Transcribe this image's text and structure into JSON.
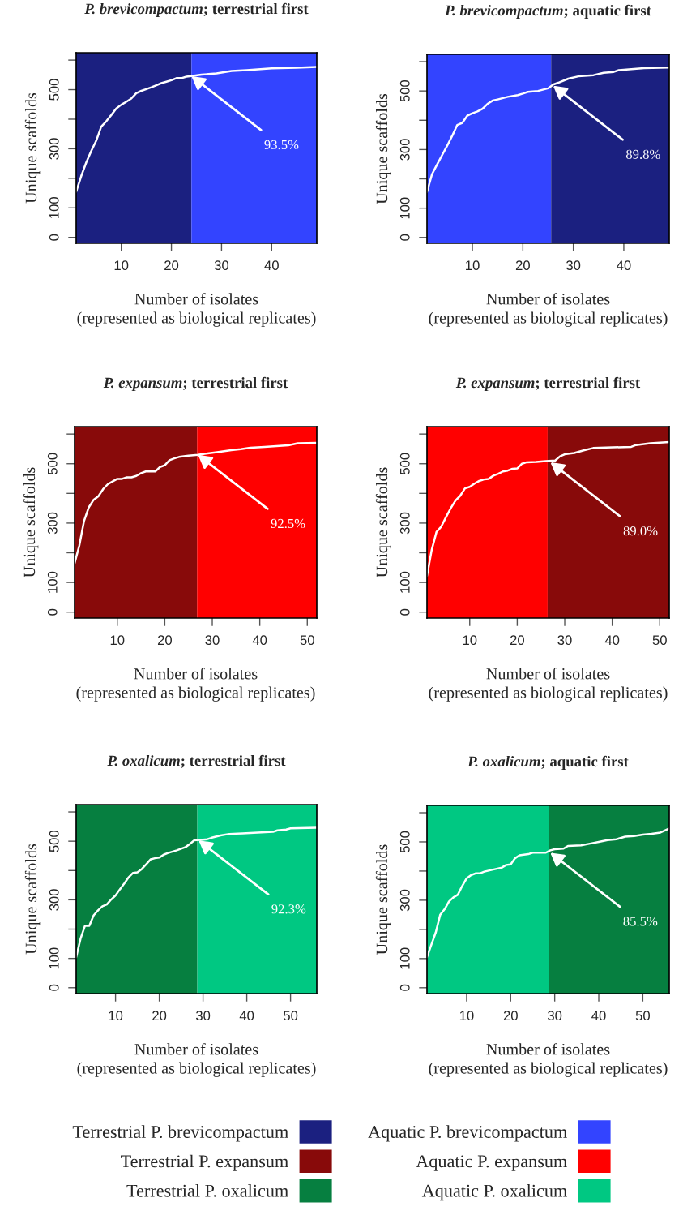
{
  "chart_data": [
    {
      "type": "line",
      "title": "P. brevicompactum; terrestrial first",
      "xlabel": "Number of isolates\n(represented as biological replicates)",
      "ylabel": "Unique scaffolds",
      "x": [
        1,
        2,
        3,
        4,
        5,
        6,
        7,
        8,
        9,
        10,
        11,
        12,
        13,
        14,
        15,
        16,
        17,
        18,
        19,
        20,
        21,
        22,
        23,
        24,
        26,
        29,
        32,
        35,
        40,
        45,
        49
      ],
      "series": [
        {
          "color": "#ffffff",
          "values": [
            155,
            207,
            253,
            292,
            327,
            375,
            393,
            414,
            436,
            449,
            459,
            470,
            488,
            496,
            502,
            508,
            515,
            522,
            527,
            532,
            539,
            539,
            544,
            546,
            551,
            555,
            563,
            566,
            572,
            574,
            577
          ]
        }
      ],
      "xlim": [
        1,
        49
      ],
      "ylim": [
        -20,
        625
      ],
      "xticks": [
        10,
        20,
        30,
        40
      ],
      "yticks": [
        0,
        100,
        {
          "value": 200,
          "label": null
        },
        300,
        {
          "value": 400,
          "label": null
        },
        500,
        {
          "value": 600,
          "label": null
        }
      ],
      "bands": [
        {
          "axis": "x",
          "from": 1,
          "to": 24,
          "color": "#1b2080",
          "label": "Terrestrial P. brevicompactum"
        },
        {
          "axis": "x",
          "from": 24,
          "to": 49,
          "color": "#3344ff",
          "label": "Aquatic P. brevicompactum"
        }
      ],
      "annotations": [
        {
          "text": "93.5%",
          "x": 24,
          "y": 546
        }
      ],
      "grid": false,
      "legend": "bottom"
    },
    {
      "type": "line",
      "title": "P. brevicompactum; aquatic first",
      "xlabel": "Number of isolates\n(represented as biological replicates)",
      "ylabel": "Unique scaffolds",
      "x": [
        1,
        2,
        3,
        4,
        5,
        6,
        7,
        8,
        9,
        10,
        11,
        12,
        13,
        14,
        15,
        17,
        19,
        20,
        21,
        23,
        25,
        26,
        27,
        29,
        31,
        34,
        36,
        38,
        39,
        42,
        44,
        49
      ],
      "series": [
        {
          "color": "#ffffff",
          "values": [
            155,
            216,
            249,
            281,
            313,
            347,
            384,
            391,
            416,
            424,
            430,
            439,
            456,
            467,
            471,
            480,
            486,
            491,
            497,
            500,
            509,
            522,
            528,
            542,
            550,
            554,
            562,
            565,
            571,
            575,
            578,
            580
          ]
        }
      ],
      "xlim": [
        1,
        49
      ],
      "ylim": [
        -20,
        625
      ],
      "xticks": [
        10,
        20,
        30,
        40
      ],
      "yticks": [
        0,
        100,
        {
          "value": 200,
          "label": null
        },
        300,
        {
          "value": 400,
          "label": null
        },
        500,
        {
          "value": 600,
          "label": null
        }
      ],
      "bands": [
        {
          "axis": "x",
          "from": 1,
          "to": 25.6,
          "color": "#3344ff"
        },
        {
          "axis": "x",
          "from": 25.6,
          "to": 49,
          "color": "#1b2080"
        }
      ],
      "annotations": [
        {
          "text": "89.8%",
          "x": 26,
          "y": 518
        }
      ],
      "grid": false
    },
    {
      "type": "line",
      "title": "P. expansum; terrestrial first",
      "xlabel": "Number of isolates\n(represented as biological replicates)",
      "ylabel": "Unique scaffolds",
      "x": [
        1,
        2,
        3,
        4,
        5,
        6,
        7,
        8,
        9,
        10,
        11,
        12,
        13,
        14,
        15,
        16,
        18,
        19,
        20,
        21,
        22,
        23,
        25,
        27,
        29,
        31,
        34,
        36,
        38,
        41,
        46,
        48,
        52
      ],
      "series": [
        {
          "color": "#ffffff",
          "values": [
            164,
            224,
            307,
            353,
            378,
            390,
            414,
            431,
            440,
            449,
            449,
            454,
            454,
            459,
            468,
            474,
            474,
            489,
            495,
            512,
            518,
            523,
            527,
            530,
            535,
            539,
            546,
            549,
            554,
            557,
            562,
            569,
            570
          ]
        }
      ],
      "xlim": [
        1,
        52
      ],
      "ylim": [
        -20,
        625
      ],
      "xticks": [
        10,
        20,
        30,
        40,
        50
      ],
      "yticks": [
        0,
        100,
        {
          "value": 200,
          "label": null
        },
        300,
        {
          "value": 400,
          "label": null
        },
        500,
        {
          "value": 600,
          "label": null
        }
      ],
      "bands": [
        {
          "axis": "x",
          "from": 1,
          "to": 26.8,
          "color": "#880a0a",
          "label": "Terrestrial P. expansum"
        },
        {
          "axis": "x",
          "from": 26.8,
          "to": 52,
          "color": "#ff0000",
          "label": "Aquatic P. expansum"
        }
      ],
      "annotations": [
        {
          "text": "92.5%",
          "x": 27,
          "y": 530
        }
      ],
      "grid": false,
      "legend": "bottom"
    },
    {
      "type": "line",
      "title": "P. expansum; terrestrial first",
      "xlabel": "Number of isolates\n(represented as biological replicates)",
      "ylabel": "Unique scaffolds",
      "x": [
        1,
        2,
        3,
        4,
        5,
        6,
        7,
        8,
        9,
        10,
        11,
        12,
        13,
        14,
        15,
        16,
        17,
        18,
        19,
        20,
        21,
        22,
        24,
        26,
        28,
        29,
        30,
        32,
        34,
        36,
        40,
        44,
        45,
        48,
        52
      ],
      "series": [
        {
          "color": "#ffffff",
          "values": [
            122,
            210,
            270,
            288,
            320,
            350,
            376,
            392,
            417,
            422,
            433,
            442,
            447,
            449,
            460,
            466,
            474,
            477,
            483,
            484,
            500,
            505,
            506,
            509,
            511,
            525,
            532,
            536,
            545,
            553,
            555,
            557,
            563,
            569,
            573
          ]
        }
      ],
      "xlim": [
        1,
        52
      ],
      "ylim": [
        -20,
        625
      ],
      "xticks": [
        10,
        20,
        30,
        40,
        50
      ],
      "yticks": [
        0,
        100,
        {
          "value": 200,
          "label": null
        },
        300,
        {
          "value": 400,
          "label": null
        },
        500,
        {
          "value": 600,
          "label": null
        }
      ],
      "bands": [
        {
          "axis": "x",
          "from": 1,
          "to": 26.4,
          "color": "#ff0000"
        },
        {
          "axis": "x",
          "from": 26.4,
          "to": 52,
          "color": "#880a0a"
        }
      ],
      "annotations": [
        {
          "text": "89.0%",
          "x": 27,
          "y": 505
        }
      ],
      "grid": false
    },
    {
      "type": "line",
      "title": "P. oxalicum; terrestrial first",
      "xlabel": "Number of isolates\n(represented as biological replicates)",
      "ylabel": "Unique scaffolds",
      "x": [
        1,
        2,
        3,
        4,
        5,
        6,
        7,
        8,
        9,
        10,
        11,
        12,
        13,
        14,
        15,
        16,
        17,
        18,
        19,
        20,
        21,
        22,
        24,
        26,
        27,
        28,
        30,
        31,
        32,
        34,
        36,
        39,
        46,
        47,
        49,
        50,
        56
      ],
      "series": [
        {
          "color": "#ffffff",
          "values": [
            104,
            167,
            211,
            211,
            247,
            264,
            278,
            284,
            301,
            315,
            336,
            356,
            377,
            392,
            394,
            405,
            421,
            438,
            442,
            444,
            454,
            460,
            469,
            480,
            491,
            503,
            505,
            507,
            512,
            520,
            525,
            527,
            532,
            537,
            540,
            544,
            546
          ]
        }
      ],
      "xlim": [
        1,
        56
      ],
      "ylim": [
        -20,
        625
      ],
      "xticks": [
        10,
        20,
        30,
        40,
        50
      ],
      "yticks": [
        0,
        100,
        {
          "value": 200,
          "label": null
        },
        300,
        {
          "value": 400,
          "label": null
        },
        500,
        {
          "value": 600,
          "label": null
        }
      ],
      "bands": [
        {
          "axis": "x",
          "from": 1,
          "to": 28.7,
          "color": "#067f40",
          "label": "Terrestrial P. oxalicum"
        },
        {
          "axis": "x",
          "from": 28.7,
          "to": 56,
          "color": "#00c882",
          "label": "Aquatic P. oxalicum"
        }
      ],
      "annotations": [
        {
          "text": "92.3%",
          "x": 29,
          "y": 503
        }
      ],
      "grid": false,
      "legend": "bottom"
    },
    {
      "type": "line",
      "title": "P. oxalicum; aquatic first",
      "xlabel": "Number of isolates\n(represented as biological replicates)",
      "ylabel": "Unique scaffolds",
      "x": [
        1,
        2,
        3,
        4,
        5,
        6,
        7,
        8,
        9,
        10,
        11,
        12,
        13,
        14,
        16,
        18,
        19,
        20,
        21,
        22,
        24,
        25,
        28,
        29,
        30,
        32,
        33,
        36,
        38,
        40,
        42,
        44,
        46,
        48,
        50,
        52,
        54,
        56
      ],
      "series": [
        {
          "color": "#ffffff",
          "values": [
            105,
            148,
            190,
            250,
            269,
            296,
            310,
            319,
            349,
            375,
            386,
            392,
            392,
            398,
            405,
            412,
            421,
            423,
            444,
            454,
            458,
            463,
            463,
            471,
            475,
            477,
            486,
            488,
            494,
            500,
            506,
            509,
            518,
            520,
            525,
            528,
            532,
            546
          ]
        }
      ],
      "xlim": [
        1,
        56
      ],
      "ylim": [
        -20,
        625
      ],
      "xticks": [
        10,
        20,
        30,
        40,
        50
      ],
      "yticks": [
        0,
        100,
        {
          "value": 200,
          "label": null
        },
        300,
        {
          "value": 400,
          "label": null
        },
        500,
        {
          "value": 600,
          "label": null
        }
      ],
      "bands": [
        {
          "axis": "x",
          "from": 1,
          "to": 28.6,
          "color": "#00c882"
        },
        {
          "axis": "x",
          "from": 28.6,
          "to": 56,
          "color": "#067f40"
        }
      ],
      "annotations": [
        {
          "text": "85.5%",
          "x": 29,
          "y": 463
        }
      ],
      "grid": false
    }
  ]
}
